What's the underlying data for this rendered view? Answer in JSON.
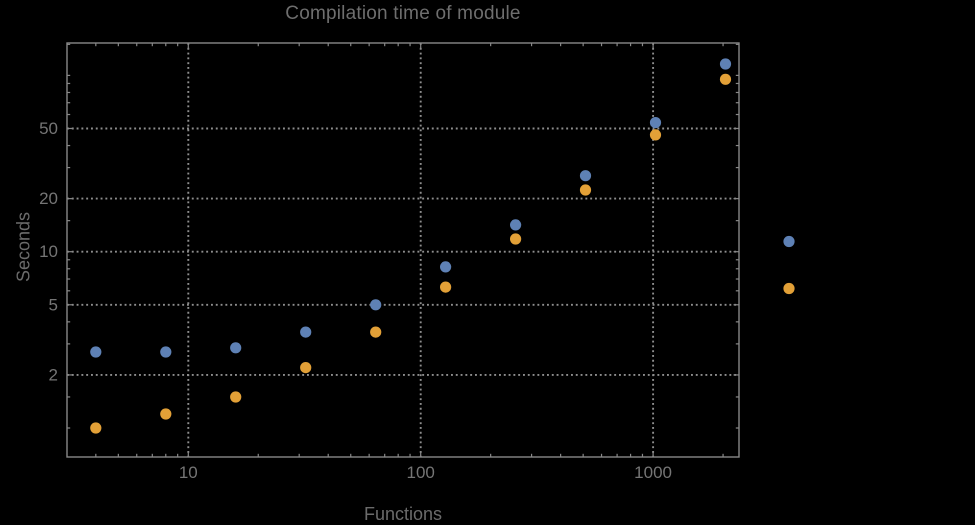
{
  "page": {
    "background": "#000000"
  },
  "colors": {
    "background": "#000000",
    "frame": "#888888",
    "grid": "#8e8e8e",
    "tick_label": "#757575",
    "title_text": "#6e6e6e",
    "axis_label": "#6b6b6b",
    "series_blue": "#5e81b5",
    "series_orange": "#e2a037"
  },
  "chart_data": {
    "type": "scatter",
    "title": "Compilation time of module",
    "xlabel": "Functions",
    "ylabel": "Seconds",
    "x_scale": "log",
    "y_scale": "log",
    "xlim": [
      3.1,
      2330
    ],
    "ylim": [
      0.68,
      153
    ],
    "grid": true,
    "grid_style": "dotted",
    "x": [
      4,
      8,
      16,
      32,
      64,
      128,
      256,
      512,
      1024,
      2048
    ],
    "series": [
      {
        "name": "series-1-blue",
        "color": "#5e81b5",
        "values": [
          2.7,
          2.7,
          2.85,
          3.5,
          5.0,
          8.2,
          14.2,
          27,
          54,
          116
        ]
      },
      {
        "name": "series-2-orange",
        "color": "#e2a037",
        "values": [
          1.0,
          1.2,
          1.5,
          2.2,
          3.5,
          6.3,
          11.8,
          22.4,
          46,
          95
        ]
      }
    ],
    "x_ticks": {
      "major": [
        10,
        100,
        1000
      ],
      "labels": [
        "10",
        "100",
        "1000"
      ],
      "minor": [
        4,
        5,
        6,
        7,
        8,
        9,
        20,
        30,
        40,
        50,
        60,
        70,
        80,
        90,
        200,
        300,
        400,
        500,
        600,
        700,
        800,
        900,
        2000
      ]
    },
    "y_ticks": {
      "major": [
        2,
        5,
        10,
        20,
        50
      ],
      "labels": [
        "2",
        "5",
        "10",
        "20",
        "50"
      ],
      "minor": [
        1,
        1.5,
        3,
        4,
        6,
        7,
        8,
        9,
        15,
        30,
        40,
        60,
        70,
        80,
        90,
        100,
        150
      ]
    },
    "gridlines": {
      "x": [
        10,
        100,
        1000
      ],
      "y": [
        2,
        5,
        10,
        20,
        50
      ]
    },
    "legend": {
      "position": "right-outside",
      "markers": [
        {
          "series": "series-1-blue",
          "color": "#5e81b5",
          "label": ""
        },
        {
          "series": "series-2-orange",
          "color": "#e2a037",
          "label": ""
        }
      ]
    }
  }
}
